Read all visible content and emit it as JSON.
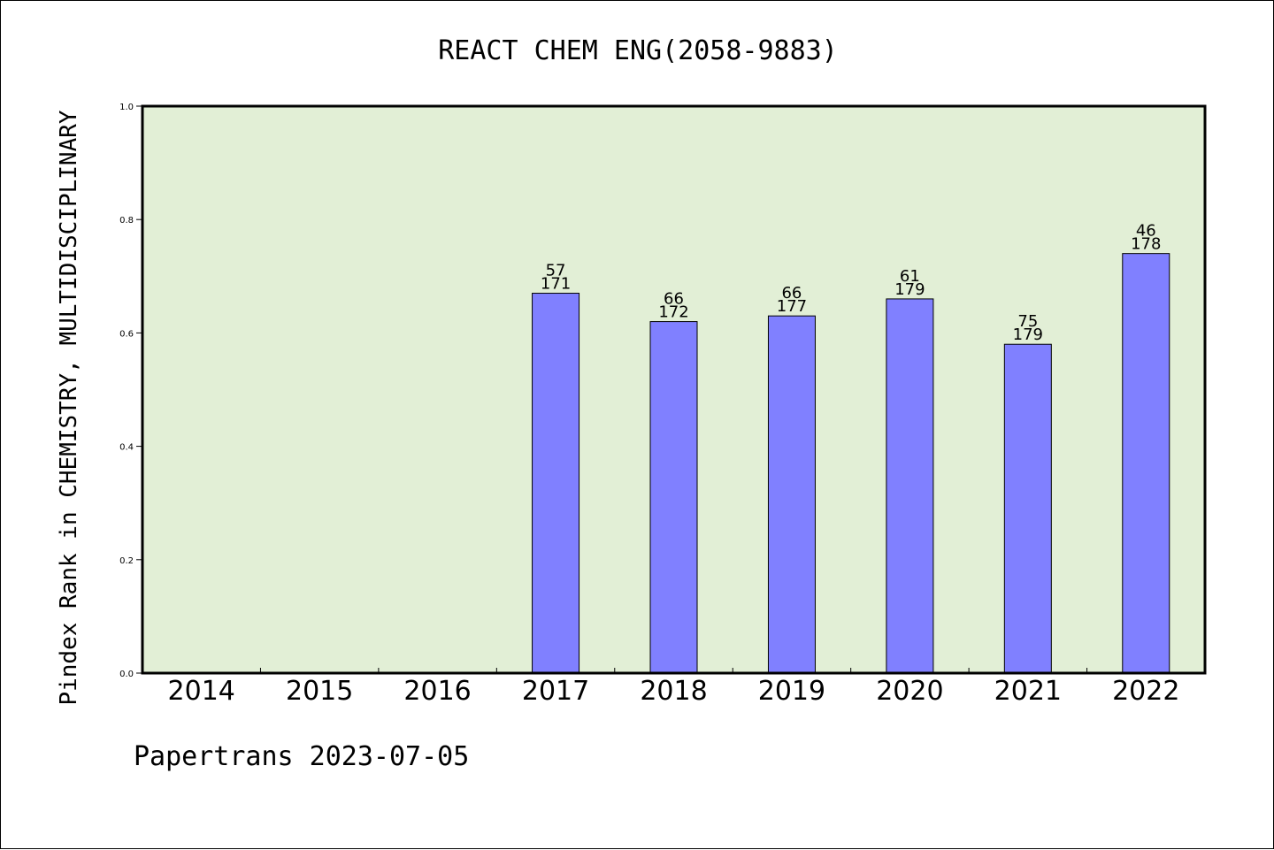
{
  "chart_data": {
    "type": "bar",
    "title": "REACT CHEM ENG(2058-9883)",
    "ylabel": "Pindex Rank in CHEMISTRY, MULTIDISCIPLINARY",
    "xlabel": "",
    "categories": [
      "2014",
      "2015",
      "2016",
      "2017",
      "2018",
      "2019",
      "2020",
      "2021",
      "2022"
    ],
    "values": [
      null,
      null,
      null,
      0.67,
      0.62,
      0.63,
      0.66,
      0.58,
      0.74
    ],
    "rank": [
      null,
      null,
      null,
      "57",
      "66",
      "66",
      "61",
      "75",
      "46"
    ],
    "total": [
      null,
      null,
      null,
      "171",
      "172",
      "177",
      "179",
      "179",
      "178"
    ],
    "ylim": [
      0,
      1.0
    ],
    "yticks": [
      "0.0",
      "0.2",
      "0.4",
      "0.6",
      "0.8",
      "1.0"
    ],
    "ytick_values": [
      0.0,
      0.2,
      0.4,
      0.6,
      0.8,
      1.0
    ],
    "grid": false,
    "legend": "none",
    "colors": {
      "bar": "#8080ff",
      "plot_bg": "#e2efd6",
      "axes": "#000000"
    },
    "footer": "Papertrans 2023-07-05"
  }
}
